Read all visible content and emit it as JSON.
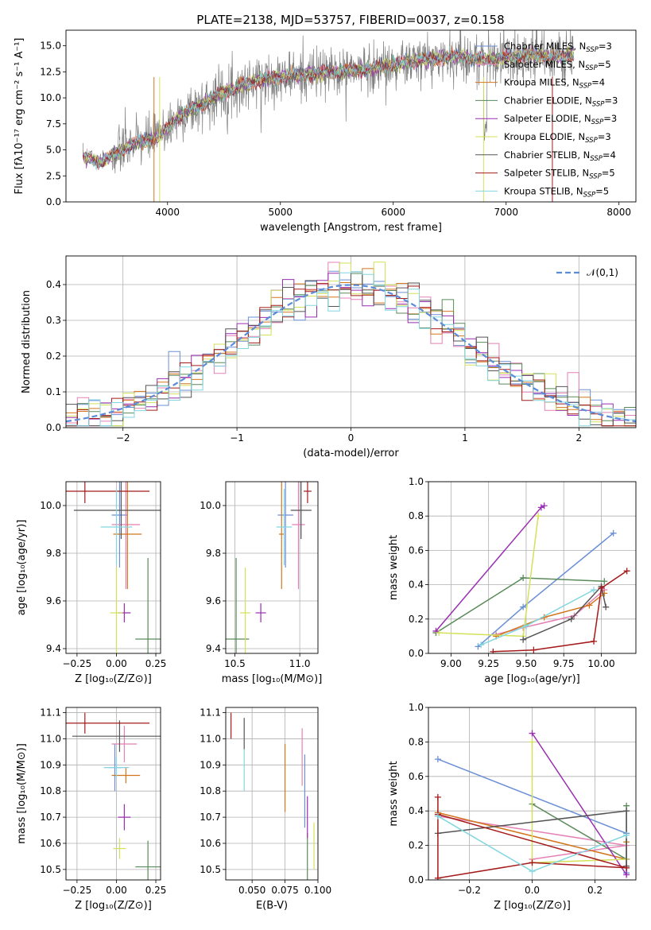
{
  "figure": {
    "title": "PLATE=2138, MJD=53757, FIBERID=0037, z=0.158"
  },
  "colors": {
    "data": "#808080",
    "series": [
      "#6a8fd6",
      "#e481b5",
      "#d2761e",
      "#5a8a5a",
      "#9a2fb1",
      "#d3e15a",
      "#555555",
      "#a51b1b",
      "#82d6e0"
    ],
    "gaussian": "#5b8cd9"
  },
  "chart_data": [
    {
      "id": "spectrum",
      "type": "line",
      "xlabel": "wavelength [Angstrom, rest frame]",
      "ylabel": "Flux [fλ10⁻¹⁷ erg cm⁻² s⁻¹ A⁻¹]",
      "xlim": [
        3100,
        8150
      ],
      "ylim": [
        0,
        16.5
      ],
      "xticks": [
        4000,
        5000,
        6000,
        7000,
        8000
      ],
      "yticks": [
        0.0,
        2.5,
        5.0,
        7.5,
        10.0,
        12.5,
        15.0
      ],
      "legend_position": "upper-right",
      "legend": [
        "Chabrier MILES, NSSP=3",
        "Salpeter MILES, NSSP=5",
        "Kroupa MILES, NSSP=4",
        "Chabrier ELODIE, NSSP=3",
        "Salpeter ELODIE, NSSP=3",
        "Kroupa ELODIE, NSSP=3",
        "Chabrier STELIB, NSSP=4",
        "Salpeter STELIB, NSSP=5",
        "Kroupa STELIB, NSSP=5"
      ],
      "continuum_x": [
        3250,
        3300,
        3400,
        3500,
        3600,
        3700,
        3800,
        3900,
        4000,
        4100,
        4200,
        4300,
        4400,
        4500,
        4600,
        4700,
        4800,
        4900,
        5000,
        5200,
        5400,
        5600,
        5800,
        6000,
        6200,
        6400,
        6600,
        6800,
        7000,
        7200,
        7400,
        7600
      ],
      "continuum_y": [
        4.3,
        4.2,
        3.8,
        4.3,
        5.0,
        5.6,
        5.9,
        6.2,
        7.1,
        8.2,
        8.8,
        9.3,
        10.0,
        10.6,
        10.9,
        11.3,
        11.7,
        11.9,
        12.0,
        12.2,
        12.4,
        12.6,
        12.8,
        13.2,
        13.5,
        13.8,
        14.0,
        13.6,
        13.9,
        14.2,
        13.9,
        14.1
      ]
    },
    {
      "id": "residuals",
      "type": "histogram",
      "xlabel": "(data-model)/error",
      "ylabel": "Normed distribution",
      "xlim": [
        -2.5,
        2.5
      ],
      "ylim": [
        0,
        0.48
      ],
      "xticks": [
        -2,
        -1,
        0,
        1,
        2
      ],
      "yticks": [
        0.0,
        0.1,
        0.2,
        0.3,
        0.4
      ],
      "bin_width": 0.1,
      "legend": "𝒩(0,1)",
      "grid": true
    },
    {
      "id": "age_vs_Z",
      "type": "errorbar",
      "xlabel": "Z [log₁₀(Z/Z⊙)]",
      "ylabel": "age  [log₁₀(age/yr)]",
      "xlim": [
        -0.32,
        0.28
      ],
      "ylim": [
        9.38,
        10.1
      ],
      "xticks": [
        -0.25,
        0.0,
        0.25
      ],
      "yticks": [
        9.4,
        9.6,
        9.8,
        10.0
      ],
      "points": [
        {
          "x": 0.02,
          "y": 9.96,
          "xerr": 0.05,
          "yerr": 0.22
        },
        {
          "x": 0.06,
          "y": 9.92,
          "xerr": 0.09,
          "yerr": 0.27
        },
        {
          "x": 0.07,
          "y": 9.88,
          "xerr": 0.09,
          "yerr": 0.23
        },
        {
          "x": 0.2,
          "y": 9.44,
          "xerr": 0.08,
          "yerr": 0.34
        },
        {
          "x": 0.05,
          "y": 9.55,
          "xerr": 0.04,
          "yerr": 0.04
        },
        {
          "x": 0.0,
          "y": 9.55,
          "xerr": 0.04,
          "yerr": 0.19
        },
        {
          "x": 0.03,
          "y": 9.98,
          "xerr": 0.3,
          "yerr": 0.12
        },
        {
          "x": -0.2,
          "y": 10.06,
          "xerr": 0.41,
          "yerr": 0.05
        },
        {
          "x": 0.0,
          "y": 9.91,
          "xerr": 0.1,
          "yerr": 0.16
        }
      ]
    },
    {
      "id": "age_vs_mass",
      "type": "errorbar",
      "xlabel": "mass [log₁₀(M/M⊙)]",
      "ylabel": "",
      "xlim": [
        10.43,
        11.14
      ],
      "ylim": [
        9.38,
        10.1
      ],
      "xticks": [
        10.5,
        11.0
      ],
      "yticks": [
        9.4,
        9.6,
        9.8,
        10.0
      ],
      "points": [
        {
          "x": 10.89,
          "y": 9.96,
          "xerr": 0.06,
          "yerr": 0.22
        },
        {
          "x": 10.99,
          "y": 9.92,
          "xerr": 0.05,
          "yerr": 0.27
        },
        {
          "x": 10.86,
          "y": 9.88,
          "xerr": 0.02,
          "yerr": 0.23
        },
        {
          "x": 10.51,
          "y": 9.44,
          "xerr": 0.1,
          "yerr": 0.34
        },
        {
          "x": 10.7,
          "y": 9.55,
          "xerr": 0.04,
          "yerr": 0.04
        },
        {
          "x": 10.58,
          "y": 9.55,
          "xerr": 0.04,
          "yerr": 0.19
        },
        {
          "x": 11.01,
          "y": 9.98,
          "xerr": 0.08,
          "yerr": 0.12
        },
        {
          "x": 11.06,
          "y": 10.06,
          "xerr": 0.03,
          "yerr": 0.05
        },
        {
          "x": 10.88,
          "y": 9.91,
          "xerr": 0.06,
          "yerr": 0.16
        }
      ]
    },
    {
      "id": "weight_vs_age",
      "type": "line",
      "xlabel": "age  [log₁₀(age/yr)]",
      "ylabel": "mass weight",
      "xlim": [
        8.85,
        10.23
      ],
      "ylim": [
        0,
        1.0
      ],
      "xticks": [
        9.0,
        9.25,
        9.5,
        9.75,
        10.0
      ],
      "yticks": [
        0.0,
        0.2,
        0.4,
        0.6,
        0.8,
        1.0
      ],
      "grid": true,
      "series": [
        {
          "x": [
            9.18,
            9.48,
            10.08
          ],
          "y": [
            0.04,
            0.27,
            0.7
          ]
        },
        {
          "x": [
            9.3,
            9.48,
            9.82,
            10.02
          ],
          "y": [
            0.11,
            0.15,
            0.22,
            0.37
          ]
        },
        {
          "x": [
            9.3,
            9.62,
            9.92,
            10.02
          ],
          "y": [
            0.1,
            0.21,
            0.28,
            0.35
          ]
        },
        {
          "x": [
            8.9,
            9.48,
            10.02
          ],
          "y": [
            0.12,
            0.44,
            0.42
          ]
        },
        {
          "x": [
            8.9,
            9.6,
            9.62
          ],
          "y": [
            0.13,
            0.85,
            0.86
          ]
        },
        {
          "x": [
            8.92,
            9.48,
            9.58
          ],
          "y": [
            0.12,
            0.1,
            0.8
          ]
        },
        {
          "x": [
            9.48,
            9.8,
            10.0,
            10.03
          ],
          "y": [
            0.08,
            0.2,
            0.39,
            0.27
          ]
        },
        {
          "x": [
            9.28,
            9.55,
            9.95,
            10.0,
            10.17
          ],
          "y": [
            0.01,
            0.02,
            0.07,
            0.38,
            0.48
          ]
        },
        {
          "x": [
            9.2,
            9.5,
            9.95
          ],
          "y": [
            0.05,
            0.16,
            0.37
          ]
        }
      ]
    },
    {
      "id": "mass_vs_Z",
      "type": "errorbar",
      "xlabel": "Z [log₁₀(Z/Z⊙)]",
      "ylabel": "mass [log₁₀(M/M⊙)]",
      "xlim": [
        -0.32,
        0.28
      ],
      "ylim": [
        10.46,
        11.12
      ],
      "xticks": [
        -0.25,
        0.0,
        0.25
      ],
      "yticks": [
        10.5,
        10.6,
        10.7,
        10.8,
        10.9,
        11.0,
        11.1
      ],
      "points": [
        {
          "x": -0.01,
          "y": 10.89,
          "xerr": 0.04,
          "yerr": 0.09
        },
        {
          "x": 0.05,
          "y": 10.98,
          "xerr": 0.08,
          "yerr": 0.07
        },
        {
          "x": 0.06,
          "y": 10.86,
          "xerr": 0.09,
          "yerr": 0.03
        },
        {
          "x": 0.2,
          "y": 10.51,
          "xerr": 0.08,
          "yerr": 0.1
        },
        {
          "x": 0.05,
          "y": 10.7,
          "xerr": 0.04,
          "yerr": 0.05
        },
        {
          "x": 0.02,
          "y": 10.58,
          "xerr": 0.04,
          "yerr": 0.04
        },
        {
          "x": 0.02,
          "y": 11.01,
          "xerr": 0.3,
          "yerr": 0.06
        },
        {
          "x": -0.2,
          "y": 11.06,
          "xerr": 0.41,
          "yerr": 0.04
        },
        {
          "x": 0.0,
          "y": 10.89,
          "xerr": 0.08,
          "yerr": 0.04
        }
      ]
    },
    {
      "id": "mass_vs_ebv",
      "type": "errorbar",
      "xlabel": "E(B-V)",
      "ylabel": "",
      "xlim": [
        0.03,
        0.1
      ],
      "ylim": [
        10.46,
        11.12
      ],
      "xticks": [
        0.05,
        0.075,
        0.1
      ],
      "xticklabels": [
        "0.050",
        "0.075",
        "0.100"
      ],
      "yticks": [
        10.5,
        10.6,
        10.7,
        10.8,
        10.9,
        11.0,
        11.1
      ],
      "points": [
        {
          "x": 0.09,
          "y": 10.8,
          "xerr": 0,
          "yerr": 0.14
        },
        {
          "x": 0.088,
          "y": 10.93,
          "xerr": 0,
          "yerr": 0.11
        },
        {
          "x": 0.075,
          "y": 10.85,
          "xerr": 0,
          "yerr": 0.13
        },
        {
          "x": 0.092,
          "y": 10.54,
          "xerr": 0,
          "yerr": 0.1
        },
        {
          "x": 0.092,
          "y": 10.7,
          "xerr": 0,
          "yerr": 0.08
        },
        {
          "x": 0.097,
          "y": 10.59,
          "xerr": 0,
          "yerr": 0.09
        },
        {
          "x": 0.044,
          "y": 11.02,
          "xerr": 0,
          "yerr": 0.06
        },
        {
          "x": 0.034,
          "y": 11.05,
          "xerr": 0,
          "yerr": 0.05
        },
        {
          "x": 0.044,
          "y": 10.88,
          "xerr": 0,
          "yerr": 0.08
        }
      ]
    },
    {
      "id": "weight_vs_Z",
      "type": "line",
      "xlabel": "Z [log₁₀(Z/Z⊙)]",
      "ylabel": "mass weight",
      "xlim": [
        -0.33,
        0.33
      ],
      "ylim": [
        0,
        1.0
      ],
      "xticks": [
        -0.2,
        0.0,
        0.2
      ],
      "yticks": [
        0.0,
        0.2,
        0.4,
        0.6,
        0.8,
        1.0
      ],
      "grid": true,
      "series": [
        {
          "x": [
            -0.3,
            0.3,
            0.3
          ],
          "y": [
            0.7,
            0.27,
            0.04
          ]
        },
        {
          "x": [
            -0.3,
            0.3,
            0.0
          ],
          "y": [
            0.37,
            0.2,
            0.12
          ]
        },
        {
          "x": [
            -0.3,
            0.3,
            0.3
          ],
          "y": [
            0.39,
            0.12,
            0.22
          ]
        },
        {
          "x": [
            0.0,
            0.3,
            0.3
          ],
          "y": [
            0.44,
            0.12,
            0.43
          ]
        },
        {
          "x": [
            0.0,
            0.3,
            0.3
          ],
          "y": [
            0.85,
            0.03,
            0.12
          ]
        },
        {
          "x": [
            0.0,
            0.0,
            0.3
          ],
          "y": [
            0.8,
            0.1,
            0.12
          ]
        },
        {
          "x": [
            -0.3,
            0.3,
            0.3
          ],
          "y": [
            0.27,
            0.4,
            0.08
          ]
        },
        {
          "x": [
            -0.3,
            -0.3,
            0.0,
            0.3,
            -0.3
          ],
          "y": [
            0.48,
            0.01,
            0.1,
            0.07,
            0.38
          ]
        },
        {
          "x": [
            -0.3,
            0.0,
            0.3
          ],
          "y": [
            0.37,
            0.05,
            0.26
          ]
        }
      ]
    }
  ]
}
